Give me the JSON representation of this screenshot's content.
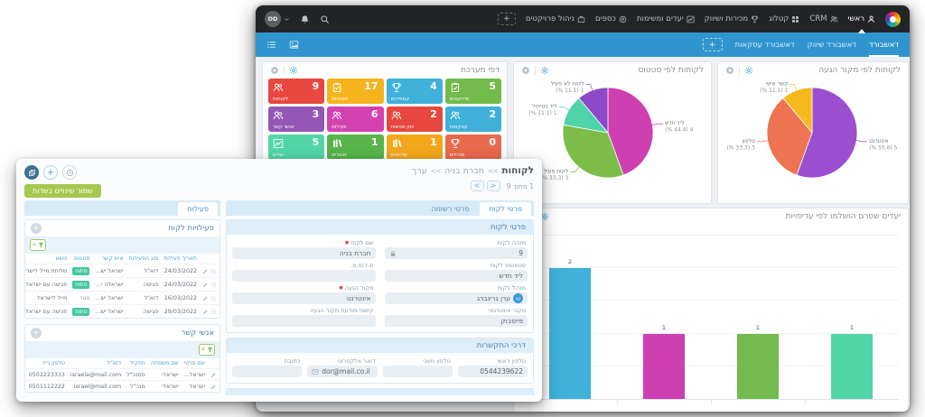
{
  "topbar": {
    "avatar_initials": "DD",
    "add_button": "+",
    "items": [
      {
        "label": "ראשי",
        "icon": "person-icon",
        "active": true
      },
      {
        "label": "CRM",
        "icon": "people-icon",
        "active": false
      },
      {
        "label": "קטלוג",
        "icon": "grid-icon",
        "active": false
      },
      {
        "label": "מכירות ושיווק",
        "icon": "trophy-icon",
        "active": false
      },
      {
        "label": "יעדים ומשימות",
        "icon": "chart-icon",
        "active": false
      },
      {
        "label": "כספים",
        "icon": "coin-icon",
        "active": false
      },
      {
        "label": "ניהול פרויקטים",
        "icon": "briefcase-icon",
        "active": false
      }
    ]
  },
  "dashboard_bar": {
    "tabs": [
      {
        "label": "דאשבורד",
        "active": true
      },
      {
        "label": "דאשבורד שיווק",
        "active": false
      },
      {
        "label": "דאשבורד עסקאות",
        "active": false
      }
    ],
    "add_button": "+"
  },
  "system_pages": {
    "title": "דפי מערכת",
    "tiles": [
      {
        "label": "לקוחות",
        "count": "9",
        "color": "#e8473f",
        "icon": "people-icon"
      },
      {
        "label": "משימות",
        "count": "17",
        "color": "#f5b31c",
        "icon": "clipboard-icon"
      },
      {
        "label": "קמפיינים",
        "count": "4",
        "color": "#3fb1da",
        "icon": "trophy-icon"
      },
      {
        "label": "פרויקטים",
        "count": "5",
        "color": "#72ba4b",
        "icon": "clipboard-icon"
      },
      {
        "label": "אנשי קשר",
        "count": "3",
        "color": "#9457b5",
        "icon": "people-icon"
      },
      {
        "label": "פעילות",
        "count": "6",
        "color": "#d442b1",
        "icon": "people-icon"
      },
      {
        "label": "יומן פגישות",
        "count": "2",
        "color": "#e8473f",
        "icon": "people-icon"
      },
      {
        "label": "עסקאות",
        "count": "2",
        "color": "#3fb1da",
        "icon": "people-icon"
      },
      {
        "label": "יעדים",
        "count": "5",
        "color": "#52d6a8",
        "icon": "chart-icon"
      },
      {
        "label": "מוצרים",
        "count": "1",
        "color": "#57b54b",
        "icon": "books-icon"
      },
      {
        "label": "שירותים",
        "count": "1",
        "color": "#f3a81c",
        "icon": "books-icon"
      },
      {
        "label": "מכרזים",
        "count": "0",
        "color": "#ea6a4e",
        "icon": "trophy-icon"
      }
    ]
  },
  "chart_data": [
    {
      "type": "pie",
      "title": "לקוחות לפי סטטוס",
      "labels": [
        "ליד חדש",
        "לקוח פעיל",
        "ליד בטיפול",
        "לקוח לא פעיל"
      ],
      "values": [
        4,
        3,
        1,
        1
      ],
      "percents": [
        44.4,
        33.3,
        11.1,
        11.1
      ],
      "value_labels": [
        "(% 44.4) 4",
        "(% 33.3) 3",
        "(% 11.1) 1",
        "(% 11.1) 1"
      ],
      "colors": [
        "#ce3fb2",
        "#7cbc49",
        "#4fd3a9",
        "#8e49c9"
      ],
      "legend_position": "callout-labels"
    },
    {
      "type": "pie",
      "title": "לקוחות לפי מקור הגעה",
      "labels": [
        "אינטרנט",
        "טלפון",
        "קשר אישי"
      ],
      "values": [
        5,
        3,
        1
      ],
      "percents": [
        55.6,
        33.3,
        11.1
      ],
      "value_labels": [
        "(% 55.6) 5",
        "(% 33.3) 3",
        "(% 11.1) 1"
      ],
      "colors": [
        "#9b4fd0",
        "#ee7350",
        "#f5b91e"
      ],
      "legend_position": "callout-labels"
    },
    {
      "type": "bar",
      "title": "יעדים שטרם הושלמו לפי עדיפויות",
      "categories": [
        "",
        "",
        "",
        ""
      ],
      "values": [
        2,
        1,
        1,
        1
      ],
      "colors": [
        "#3fb1da",
        "#ce3fb2",
        "#72ba4b",
        "#52d6a8"
      ],
      "ylim": [
        0,
        2.5
      ],
      "grid": true
    }
  ],
  "overlay_window": {
    "toolbar": {
      "stack_icon": "layers-icon",
      "add_icon": "plus-icon",
      "history_icon": "clock-icon",
      "add_label": "+"
    },
    "breadcrumb": {
      "root": "לקוחות",
      "separator": "<<",
      "middle": "חברת בניה",
      "current": "ערך"
    },
    "pagination": {
      "text": "1 מתוך 9",
      "prev": "<",
      "next": ">"
    },
    "save_button": "שמור שינויים בשדות",
    "left_tab": "פעילות",
    "form_tabs": [
      {
        "label": "פרטי לקוח",
        "active": true
      },
      {
        "label": "פרטי רשומה",
        "active": false
      }
    ],
    "customer_details": {
      "title": "פרטי לקוח",
      "fields": [
        {
          "label": "מזהה לקוח",
          "value": "9",
          "locked": true
        },
        {
          "label": "שם לקוח",
          "value": "חברת בניה",
          "required": true
        },
        {
          "label": "סטאטוס לקוח",
          "value": "ליד חדש"
        },
        {
          "label": "ת.ז./ח.פ.",
          "value": ""
        },
        {
          "label": "מנהל לקוח",
          "value": "ערן גרינברג",
          "avatar_initials": "עג"
        },
        {
          "label": "מקור הגעה",
          "value": "אינטרנט",
          "required": true
        },
        {
          "label": "מקור אינטרנטי",
          "value": "פייסבוק"
        },
        {
          "label": "קישור מודעת מקור הגעה",
          "value": ""
        }
      ]
    },
    "contact_methods": {
      "title": "דרכי התקשרות",
      "fields": [
        {
          "label": "טלפון ראשי",
          "value": "0544239622"
        },
        {
          "label": "טלפון משני",
          "value": ""
        },
        {
          "label": "דואר אלקטרוני",
          "value": "dor@mail.co.il",
          "icon": "envelope-icon"
        },
        {
          "label": "כתובת",
          "value": ""
        }
      ]
    },
    "activities": {
      "title": "פעילויות לקוח",
      "headers": [
        "תאריך פעילות",
        "סוג הפעילות",
        "איש קשר",
        "סטטוס",
        "נושא"
      ],
      "rows": [
        {
          "date": "24/03/2022",
          "type": "דוא\"ל",
          "contact": "ישראל יש...",
          "status": "פתוח",
          "badge": true,
          "subject": "שליחת מייל לישראל"
        },
        {
          "date": "24/03/2022",
          "type": "פגישה",
          "contact": "ישראלה י...",
          "status": "פתוח",
          "badge": true,
          "subject": "פגישה עם ישראלה"
        },
        {
          "date": "16/03/2022",
          "type": "דוא\"ל",
          "contact": "ישראל יש...",
          "status": "סגור",
          "badge": false,
          "subject": "מייל לישראל"
        },
        {
          "date": "29/03/2022",
          "type": "פגישה",
          "contact": "ישראל יש...",
          "status": "פתוח",
          "badge": true,
          "subject": "פגישה עם ישראל לקפה"
        }
      ]
    },
    "contacts": {
      "title": "אנשי קשר",
      "headers": [
        "שם פרטי",
        "שם משפחה",
        "תפקיד",
        "דוא\"ל",
        "טלפון נייד"
      ],
      "rows": [
        {
          "first": "ישראל...",
          "last": "ישראלי",
          "role": "סמנכ\"ל",
          "email": "israela@mail.com",
          "phone": "0502223333"
        },
        {
          "first": "ישראל",
          "last": "ישראלי",
          "role": "מנכ\"ל",
          "email": "israel@mail.com",
          "phone": "0501112222"
        }
      ]
    }
  }
}
